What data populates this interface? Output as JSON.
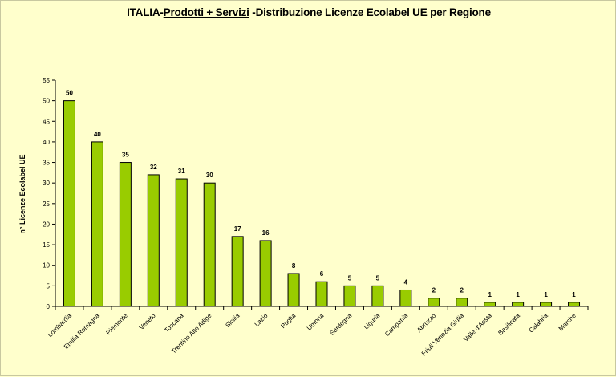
{
  "title": {
    "prefix": "ITALIA-",
    "underlined": "Prodotti + Servizi",
    "suffix": " -Distribuzione Licenze Ecolabel UE per Regione"
  },
  "chart_data": {
    "type": "bar",
    "title": "ITALIA-Prodotti + Servizi -Distribuzione Licenze Ecolabel UE per Regione",
    "xlabel": "",
    "ylabel": "n° Licenze  Ecolabel  UE",
    "ylim": [
      0,
      55
    ],
    "yticks": [
      0,
      5,
      10,
      15,
      20,
      25,
      30,
      35,
      40,
      45,
      50,
      55
    ],
    "bar_color": "#99cc00",
    "bar_stroke": "#000000",
    "background": "#ffffcc",
    "categories": [
      "Lombardia",
      "Emilia Romagna",
      "Piemonte",
      "Veneto",
      "Toscana",
      "Trentino Alto Adige",
      "Sicilia",
      "Lazio",
      "Puglia",
      "Umbria",
      "Sardegna",
      "Liguria",
      "Campania",
      "Abruzzo",
      "Friuli Venezia Giulia",
      "Valle d'Aosta",
      "Basilicata",
      "Calabria",
      "Marche"
    ],
    "values": [
      50,
      40,
      35,
      32,
      31,
      30,
      17,
      16,
      8,
      6,
      5,
      5,
      4,
      2,
      2,
      1,
      1,
      1,
      1
    ],
    "data_labels": true
  }
}
